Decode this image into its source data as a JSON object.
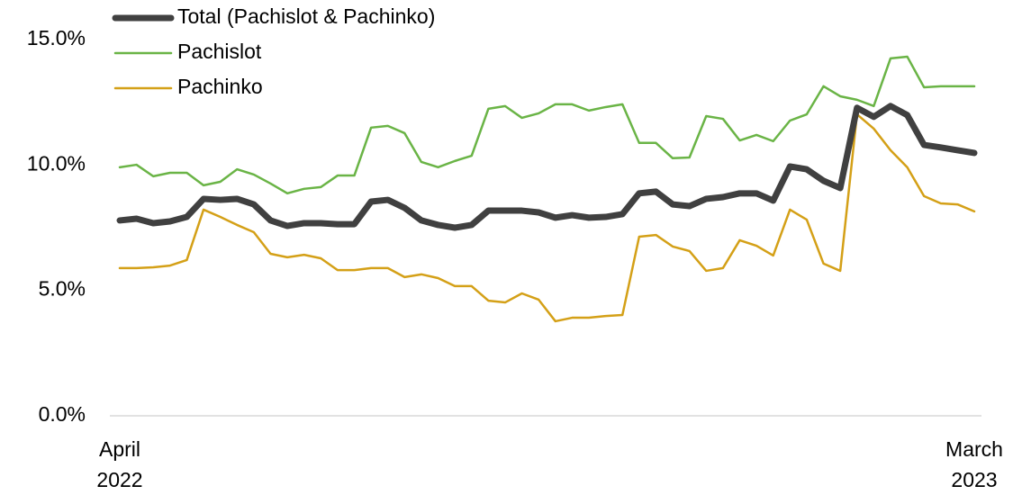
{
  "chart_data": {
    "type": "line",
    "categories": [
      "April\n2022",
      null,
      null,
      null,
      null,
      null,
      null,
      null,
      null,
      null,
      null,
      null,
      null,
      null,
      null,
      null,
      null,
      null,
      null,
      null,
      null,
      null,
      null,
      null,
      null,
      null,
      null,
      null,
      null,
      null,
      null,
      null,
      null,
      null,
      null,
      null,
      null,
      null,
      null,
      null,
      null,
      null,
      null,
      null,
      null,
      null,
      null,
      null,
      null,
      null,
      null,
      "March\n2023"
    ],
    "series": [
      {
        "name": "Total (Pachislot & Pachinko)",
        "color": "#404040",
        "width": 7,
        "values": [
          7.79,
          7.86,
          7.68,
          7.75,
          7.93,
          8.65,
          8.61,
          8.65,
          8.43,
          7.79,
          7.57,
          7.68,
          7.68,
          7.64,
          7.64,
          8.54,
          8.61,
          8.29,
          7.79,
          7.61,
          7.5,
          7.61,
          8.18,
          8.18,
          8.18,
          8.11,
          7.9,
          8.0,
          7.9,
          7.93,
          8.04,
          8.87,
          8.94,
          8.43,
          8.36,
          8.65,
          8.72,
          8.87,
          8.87,
          8.58,
          9.94,
          9.83,
          9.37,
          9.08,
          12.28,
          11.92,
          12.35,
          11.99,
          10.8,
          10.7,
          10.59,
          10.48
        ]
      },
      {
        "name": "Pachislot",
        "color": "#6ab446",
        "width": 2.5,
        "values": [
          9.91,
          10.01,
          9.55,
          9.69,
          9.69,
          9.19,
          9.33,
          9.83,
          9.62,
          9.26,
          8.87,
          9.05,
          9.12,
          9.58,
          9.58,
          11.49,
          11.56,
          11.27,
          10.12,
          9.91,
          10.16,
          10.37,
          12.24,
          12.35,
          11.88,
          12.06,
          12.42,
          12.42,
          12.17,
          12.31,
          12.42,
          10.88,
          10.88,
          10.27,
          10.3,
          11.95,
          11.84,
          10.98,
          11.2,
          10.95,
          11.77,
          12.02,
          13.14,
          12.74,
          12.6,
          12.35,
          14.25,
          14.32,
          13.1,
          13.14,
          13.14,
          13.14
        ]
      },
      {
        "name": "Pachinko",
        "color": "#d4a017",
        "width": 2.5,
        "values": [
          5.89,
          5.89,
          5.92,
          5.99,
          6.21,
          8.22,
          7.93,
          7.61,
          7.32,
          6.46,
          6.32,
          6.42,
          6.28,
          5.81,
          5.81,
          5.89,
          5.89,
          5.53,
          5.64,
          5.49,
          5.17,
          5.17,
          4.59,
          4.52,
          4.88,
          4.63,
          3.77,
          3.91,
          3.91,
          3.98,
          4.02,
          7.14,
          7.21,
          6.75,
          6.57,
          5.78,
          5.89,
          7.0,
          6.78,
          6.39,
          8.22,
          7.82,
          6.07,
          5.78,
          12.02,
          11.45,
          10.59,
          9.91,
          8.76,
          8.47,
          8.43,
          8.15
        ]
      }
    ],
    "ylim": [
      0,
      15
    ],
    "yticks": [
      {
        "value": 0,
        "label": "0.0%"
      },
      {
        "value": 5,
        "label": "5.0%"
      },
      {
        "value": 10,
        "label": "10.0%"
      },
      {
        "value": 15,
        "label": "15.0%"
      }
    ],
    "grid": false,
    "legend": "top-left"
  }
}
